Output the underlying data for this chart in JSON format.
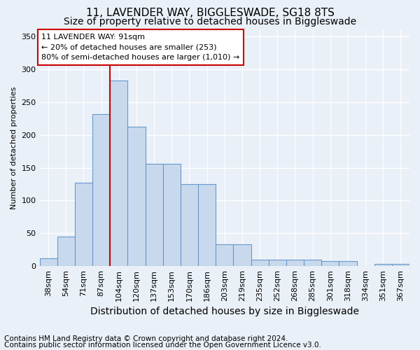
{
  "title1": "11, LAVENDER WAY, BIGGLESWADE, SG18 8TS",
  "title2": "Size of property relative to detached houses in Biggleswade",
  "xlabel": "Distribution of detached houses by size in Biggleswade",
  "ylabel": "Number of detached properties",
  "footnote1": "Contains HM Land Registry data © Crown copyright and database right 2024.",
  "footnote2": "Contains public sector information licensed under the Open Government Licence v3.0.",
  "bar_labels": [
    "38sqm",
    "54sqm",
    "71sqm",
    "87sqm",
    "104sqm",
    "120sqm",
    "137sqm",
    "153sqm",
    "170sqm",
    "186sqm",
    "203sqm",
    "219sqm",
    "235sqm",
    "252sqm",
    "268sqm",
    "285sqm",
    "301sqm",
    "318sqm",
    "334sqm",
    "351sqm",
    "367sqm"
  ],
  "bar_values": [
    12,
    45,
    127,
    232,
    283,
    212,
    156,
    156,
    125,
    125,
    33,
    33,
    10,
    10,
    10,
    10,
    8,
    8,
    0,
    3,
    3
  ],
  "bar_color": "#c9d9ed",
  "bar_edge_color": "#6699cc",
  "property_line_label": "11 LAVENDER WAY: 91sqm",
  "annotation_line1": "← 20% of detached houses are smaller (253)",
  "annotation_line2": "80% of semi-detached houses are larger (1,010) →",
  "annotation_box_color": "white",
  "annotation_box_edge": "#cc0000",
  "vline_color": "#cc0000",
  "vline_x": 3.5,
  "ylim": [
    0,
    360
  ],
  "yticks": [
    0,
    50,
    100,
    150,
    200,
    250,
    300,
    350
  ],
  "background_color": "#eaf0f8",
  "plot_background": "#eaf0f8",
  "grid_color": "white",
  "title1_fontsize": 11,
  "title2_fontsize": 10,
  "xlabel_fontsize": 10,
  "ylabel_fontsize": 8,
  "tick_fontsize": 8,
  "annot_fontsize": 8,
  "footnote_fontsize": 7.5
}
